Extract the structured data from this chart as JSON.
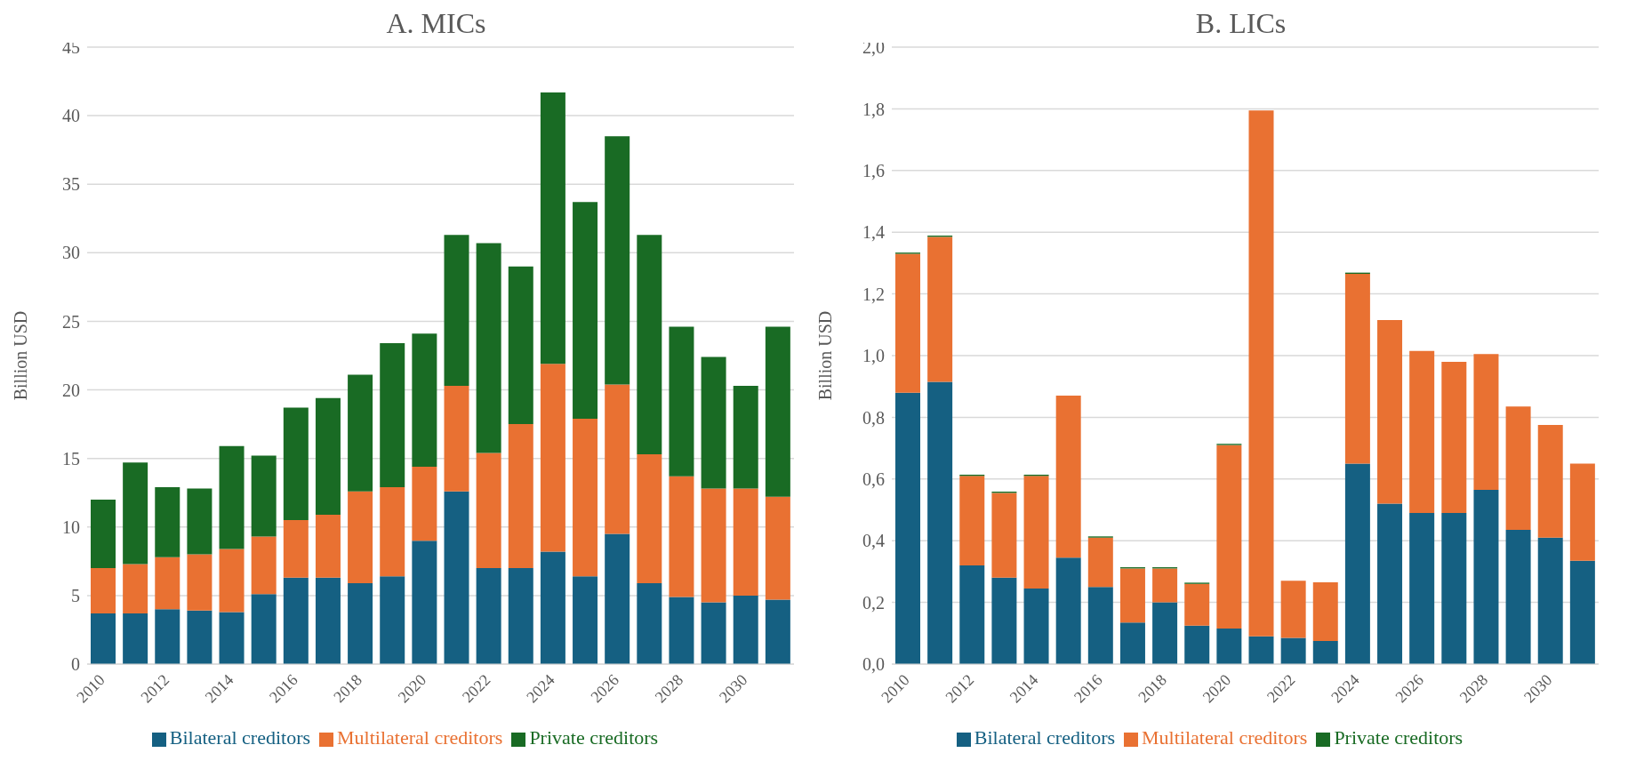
{
  "chart_data": [
    {
      "type": "bar",
      "title": "A. MICs",
      "ylabel": "Billion USD",
      "stacked": true,
      "grid": "y",
      "legend": "bottom",
      "categories": [
        "2010",
        null,
        "2012",
        null,
        "2014",
        null,
        "2016",
        null,
        "2018",
        null,
        "2020",
        null,
        "2022",
        null,
        "2024",
        null,
        "2026",
        null,
        "2028",
        null,
        "2030",
        null
      ],
      "ylim": [
        0,
        45
      ],
      "yticks": [
        0,
        5,
        10,
        15,
        20,
        25,
        30,
        35,
        40,
        45
      ],
      "series": [
        {
          "name": "Bilateral creditors",
          "color": "#156082",
          "values": [
            3.7,
            3.7,
            4.0,
            3.9,
            3.8,
            5.1,
            6.3,
            6.3,
            5.9,
            6.4,
            9.0,
            12.6,
            7.0,
            7.0,
            8.2,
            6.4,
            9.5,
            5.9,
            4.9,
            4.5,
            5.0,
            4.7
          ]
        },
        {
          "name": "Multilateral creditors",
          "color": "#e97132",
          "values": [
            3.3,
            3.6,
            3.8,
            4.1,
            4.6,
            4.2,
            4.2,
            4.6,
            6.7,
            6.5,
            5.4,
            7.7,
            8.4,
            10.5,
            13.7,
            11.5,
            10.9,
            9.4,
            8.8,
            8.3,
            7.8,
            7.5
          ]
        },
        {
          "name": "Private creditors",
          "color": "#196b24",
          "values": [
            5.0,
            7.4,
            5.1,
            4.8,
            7.5,
            5.9,
            8.2,
            8.5,
            8.5,
            10.5,
            9.7,
            11.0,
            15.3,
            11.5,
            19.8,
            15.8,
            18.1,
            16.0,
            10.9,
            9.6,
            7.5,
            12.4
          ]
        }
      ]
    },
    {
      "type": "bar",
      "title": "B. LICs",
      "ylabel": "Billion USD",
      "stacked": true,
      "grid": "y",
      "legend": "bottom",
      "categories": [
        "2010",
        null,
        "2012",
        null,
        "2014",
        null,
        "2016",
        null,
        "2018",
        null,
        "2020",
        null,
        "2022",
        null,
        "2024",
        null,
        "2026",
        null,
        "2028",
        null,
        "2030",
        null
      ],
      "ylim": [
        0,
        2
      ],
      "yticks": [
        {
          "value": 0,
          "label": "0,0"
        },
        {
          "value": 0.2,
          "label": "0,2"
        },
        {
          "value": 0.4,
          "label": "0,4"
        },
        {
          "value": 0.6,
          "label": "0,6"
        },
        {
          "value": 0.8,
          "label": "0,8"
        },
        {
          "value": 1.0,
          "label": "1,0"
        },
        {
          "value": 1.2,
          "label": "1,2"
        },
        {
          "value": 1.4,
          "label": "1,4"
        },
        {
          "value": 1.6,
          "label": "1,6"
        },
        {
          "value": 1.8,
          "label": "1,8"
        },
        {
          "value": 2.0,
          "label": "2,0"
        }
      ],
      "series": [
        {
          "name": "Bilateral creditors",
          "color": "#156082",
          "values": [
            0.88,
            0.915,
            0.32,
            0.28,
            0.245,
            0.345,
            0.25,
            0.135,
            0.2,
            0.125,
            0.115,
            0.09,
            0.085,
            0.075,
            0.65,
            0.52,
            0.49,
            0.49,
            0.565,
            0.435,
            0.41,
            0.335
          ]
        },
        {
          "name": "Multilateral creditors",
          "color": "#e97132",
          "values": [
            0.45,
            0.47,
            0.29,
            0.275,
            0.365,
            0.525,
            0.16,
            0.175,
            0.11,
            0.135,
            0.595,
            1.705,
            0.185,
            0.19,
            0.615,
            0.595,
            0.525,
            0.49,
            0.44,
            0.4,
            0.365,
            0.315
          ]
        },
        {
          "name": "Private creditors",
          "color": "#196b24",
          "values": [
            0.004,
            0.004,
            0.004,
            0.004,
            0.004,
            0,
            0.004,
            0.004,
            0.004,
            0.004,
            0.004,
            0,
            0,
            0,
            0.004,
            0,
            0,
            0,
            0,
            0,
            0,
            0
          ]
        }
      ]
    }
  ]
}
